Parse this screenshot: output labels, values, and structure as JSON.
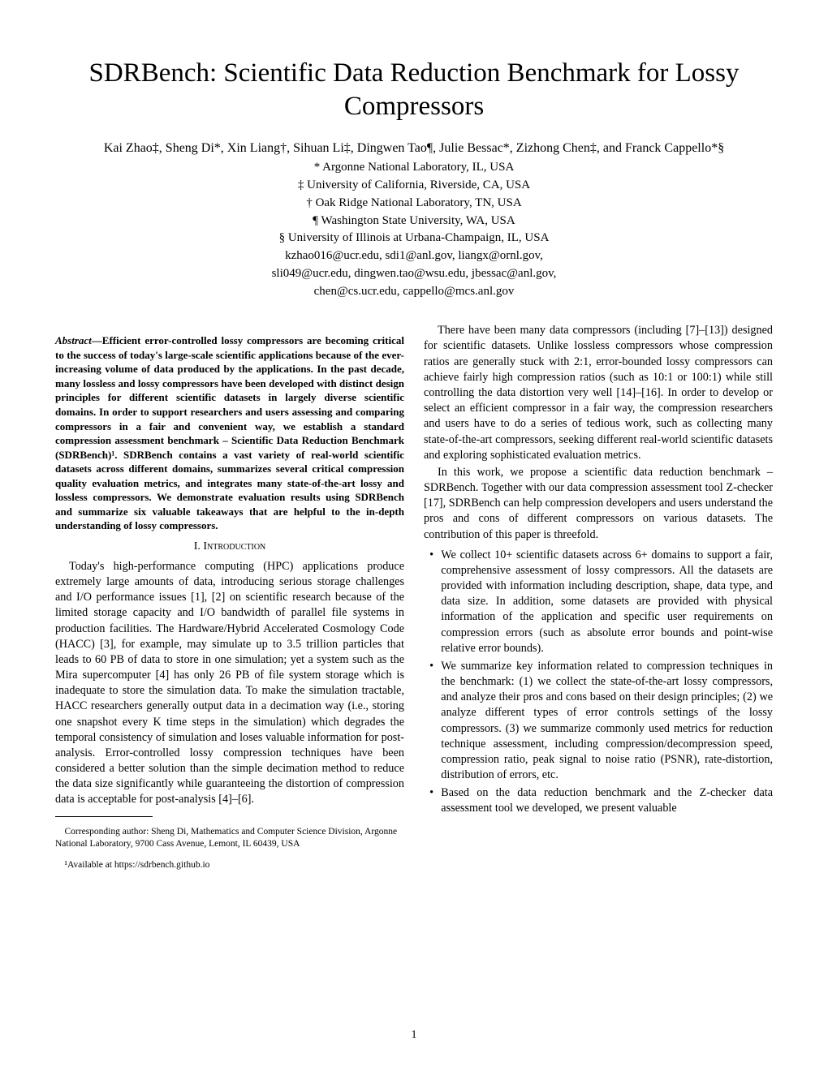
{
  "title": "SDRBench: Scientific Data Reduction Benchmark for Lossy Compressors",
  "authors_line": "Kai Zhao‡, Sheng Di*, Xin Liang†, Sihuan Li‡, Dingwen Tao¶, Julie Bessac*, Zizhong Chen‡, and Franck Cappello*§",
  "affiliations": {
    "a1": "* Argonne National Laboratory, IL, USA",
    "a2": "‡ University of California, Riverside, CA, USA",
    "a3": "† Oak Ridge National Laboratory, TN, USA",
    "a4": "¶ Washington State University, WA, USA",
    "a5": "§ University of Illinois at Urbana-Champaign, IL, USA"
  },
  "emails": {
    "e1": "kzhao016@ucr.edu, sdi1@anl.gov, liangx@ornl.gov,",
    "e2": "sli049@ucr.edu, dingwen.tao@wsu.edu, jbessac@anl.gov,",
    "e3": "chen@cs.ucr.edu, cappello@mcs.anl.gov"
  },
  "abstract_lead": "Abstract",
  "abstract_body": "—Efficient error-controlled lossy compressors are becoming critical to the success of today's large-scale scientific applications because of the ever-increasing volume of data produced by the applications. In the past decade, many lossless and lossy compressors have been developed with distinct design principles for different scientific datasets in largely diverse scientific domains. In order to support researchers and users assessing and comparing compressors in a fair and convenient way, we establish a standard compression assessment benchmark – Scientific Data Reduction Benchmark (SDRBench)¹. SDRBench contains a vast variety of real-world scientific datasets across different domains, summarizes several critical compression quality evaluation metrics, and integrates many state-of-the-art lossy and lossless compressors. We demonstrate evaluation results using SDRBench and summarize six valuable takeaways that are helpful to the in-depth understanding of lossy compressors.",
  "section1_heading": "I. Introduction",
  "col1_para1": "Today's high-performance computing (HPC) applications produce extremely large amounts of data, introducing serious storage challenges and I/O performance issues [1], [2] on scientific research because of the limited storage capacity and I/O bandwidth of parallel file systems in production facilities. The Hardware/Hybrid Accelerated Cosmology Code (HACC) [3], for example, may simulate up to 3.5 trillion particles that leads to 60 PB of data to store in one simulation; yet a system such as the Mira supercomputer [4] has only 26 PB of file system storage which is inadequate to store the simulation data. To make the simulation tractable, HACC researchers generally output data in a decimation way (i.e., storing one snapshot every K time steps in the simulation) which degrades the temporal consistency of simulation and loses valuable information for post-analysis. Error-controlled lossy compression techniques have been considered a better solution than the simple decimation method to reduce the data size significantly while guaranteeing the distortion of compression data is acceptable for post-analysis [4]–[6].",
  "footnote1": "Corresponding author: Sheng Di, Mathematics and Computer Science Division, Argonne National Laboratory, 9700 Cass Avenue, Lemont, IL 60439, USA",
  "footnote2": "¹Available at https://sdrbench.github.io",
  "col2_para1": "There have been many data compressors (including [7]–[13]) designed for scientific datasets. Unlike lossless compressors whose compression ratios are generally stuck with 2:1, error-bounded lossy compressors can achieve fairly high compression ratios (such as 10:1 or 100:1) while still controlling the data distortion very well [14]–[16]. In order to develop or select an efficient compressor in a fair way, the compression researchers and users have to do a series of tedious work, such as collecting many state-of-the-art compressors, seeking different real-world scientific datasets and exploring sophisticated evaluation metrics.",
  "col2_para2": "In this work, we propose a scientific data reduction benchmark – SDRBench. Together with our data compression assessment tool Z-checker [17], SDRBench can help compression developers and users understand the pros and cons of different compressors on various datasets. The contribution of this paper is threefold.",
  "bullets": {
    "b1": "We collect 10+ scientific datasets across 6+ domains to support a fair, comprehensive assessment of lossy compressors. All the datasets are provided with information including description, shape, data type, and data size. In addition, some datasets are provided with physical information of the application and specific user requirements on compression errors (such as absolute error bounds and point-wise relative error bounds).",
    "b2": "We summarize key information related to compression techniques in the benchmark: (1) we collect the state-of-the-art lossy compressors, and analyze their pros and cons based on their design principles; (2) we analyze different types of error controls settings of the lossy compressors. (3) we summarize commonly used metrics for reduction technique assessment, including compression/decompression speed, compression ratio, peak signal to noise ratio (PSNR), rate-distortion, distribution of errors, etc.",
    "b3": "Based on the data reduction benchmark and the Z-checker data assessment tool we developed, we present valuable"
  },
  "page_number": "1"
}
